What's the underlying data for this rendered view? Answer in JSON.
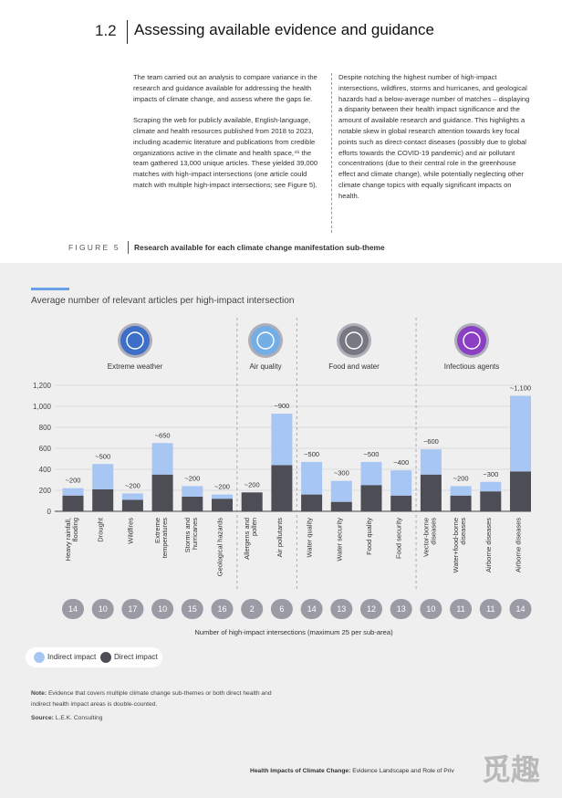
{
  "section": {
    "number": "1.2",
    "title": "Assessing available evidence and guidance"
  },
  "intro_left": [
    "The team carried out an analysis to compare variance in the research and guidance available for addressing the health impacts of climate change, and assess where the gaps lie.",
    "Scraping the web for publicly available, English-language, climate and health resources published from 2018 to 2023, including academic literature and publications from credible organizations active in the climate and health space,⁴⁶ the team gathered 13,000 unique articles. These yielded 39,000 matches with high-impact intersections (one article could match with multiple high-impact intersections; see Figure 5)."
  ],
  "intro_right": [
    "Despite notching the highest number of high-impact intersections, wildfires, storms and hurricanes, and geological hazards had a below-average number of matches – displaying a disparity between their health impact significance and the amount of available research and guidance. This highlights a notable skew in global research attention towards key focal points such as direct-contact diseases (possibly due to global efforts towards the COVID-19 pandemic) and air pollutant concentrations (due to their central role in the greenhouse effect and climate change), while potentially neglecting other climate change topics with equally significant impacts on health."
  ],
  "figure": {
    "label": "FIGURE 5",
    "title": "Research available for each climate change manifestation sub-theme"
  },
  "chart_title": "Average number of relevant articles per high-impact intersection",
  "colors": {
    "indirect": "#a8c6f4",
    "direct": "#4d4d56",
    "circle": "#aeaeb8",
    "icon_blue": "#3d6fc8",
    "icon_lightblue": "#74aee6",
    "icon_grey": "#787882",
    "icon_purple": "#8a3fc5"
  },
  "chart_data": {
    "type": "bar",
    "stacked": true,
    "ylim": [
      0,
      1200
    ],
    "yticks": [
      "0",
      "200",
      "400",
      "600",
      "800",
      "1,000",
      "1,200"
    ],
    "groups": [
      {
        "name": "Extreme weather",
        "icon": "thermometer-icon",
        "color_key": "icon_blue"
      },
      {
        "name": "Air quality",
        "icon": "air-cloud-icon",
        "color_key": "icon_lightblue"
      },
      {
        "name": "Food and water",
        "icon": "crops-icon",
        "color_key": "icon_grey"
      },
      {
        "name": "Infectious agents",
        "icon": "virus-icon",
        "color_key": "icon_purple"
      }
    ],
    "categories": [
      {
        "label": "Heavy rainfall,",
        "label2": "flooding",
        "group": 0,
        "direct": 150,
        "indirect": 70,
        "top_label": "~200",
        "count": "14"
      },
      {
        "label": "Drought",
        "label2": "",
        "group": 0,
        "direct": 210,
        "indirect": 240,
        "top_label": "~500",
        "count": "10"
      },
      {
        "label": "Wildfires",
        "label2": "",
        "group": 0,
        "direct": 110,
        "indirect": 60,
        "top_label": "~200",
        "count": "17"
      },
      {
        "label": "Extreme",
        "label2": "temperatures",
        "group": 0,
        "direct": 350,
        "indirect": 300,
        "top_label": "~650",
        "count": "10"
      },
      {
        "label": "Storms and",
        "label2": "hurricanes",
        "group": 0,
        "direct": 140,
        "indirect": 100,
        "top_label": "~200",
        "count": "15"
      },
      {
        "label": "Geological hazards",
        "label2": "",
        "group": 0,
        "direct": 120,
        "indirect": 40,
        "top_label": "~200",
        "count": "16"
      },
      {
        "label": "Allergens and",
        "label2": "pollen",
        "group": 1,
        "direct": 180,
        "indirect": 0,
        "top_label": "~200",
        "count": "2"
      },
      {
        "label": "Air pollutants",
        "label2": "",
        "group": 1,
        "direct": 440,
        "indirect": 490,
        "top_label": "~900",
        "count": "6"
      },
      {
        "label": "Water quality",
        "label2": "",
        "group": 2,
        "direct": 160,
        "indirect": 310,
        "top_label": "~500",
        "count": "14"
      },
      {
        "label": "Water security",
        "label2": "",
        "group": 2,
        "direct": 90,
        "indirect": 200,
        "top_label": "~300",
        "count": "13"
      },
      {
        "label": "Food quality",
        "label2": "",
        "group": 2,
        "direct": 250,
        "indirect": 220,
        "top_label": "~500",
        "count": "12"
      },
      {
        "label": "Food security",
        "label2": "",
        "group": 2,
        "direct": 150,
        "indirect": 240,
        "top_label": "~400",
        "count": "13"
      },
      {
        "label": "Vector-borne",
        "label2": "diseases",
        "group": 3,
        "direct": 350,
        "indirect": 240,
        "top_label": "~600",
        "count": "10"
      },
      {
        "label": "Water+food-borne",
        "label2": "diseases",
        "group": 3,
        "direct": 150,
        "indirect": 90,
        "top_label": "~200",
        "count": "11"
      },
      {
        "label": "Airborne diseases",
        "label2": "",
        "group": 3,
        "direct": 190,
        "indirect": 90,
        "top_label": "~300",
        "count": "11"
      },
      {
        "label": "Airborne diseases",
        "label2": "",
        "group": 3,
        "direct": 380,
        "indirect": 720,
        "top_label": "~1,100",
        "count": "14"
      }
    ],
    "counts_caption": "Number of high-impact intersections (maximum 25 per sub-area)"
  },
  "legend": {
    "indirect": "Indirect impact",
    "direct": "Direct impact"
  },
  "note": {
    "label": "Note:",
    "text": " Evidence that covers multiple climate change sub-themes or both direct health and indirect health impact areas is double-counted."
  },
  "source": {
    "label": "Source:",
    "text": " L.E.K. Consulting"
  },
  "footer": {
    "bold": "Health Impacts of Climate Change:",
    "text": " Evidence Landscape and Role of Priv"
  },
  "watermark": "觅趣网"
}
